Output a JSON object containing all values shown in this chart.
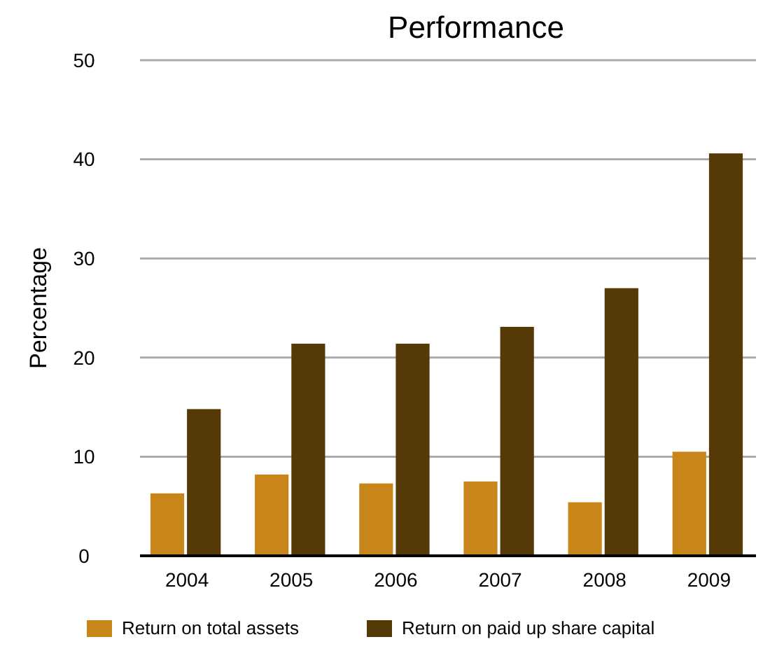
{
  "chart_data": {
    "type": "bar",
    "title": "Performance",
    "ylabel": "Percentage",
    "categories": [
      "2004",
      "2005",
      "2006",
      "2007",
      "2008",
      "2009"
    ],
    "series": [
      {
        "name": "Return on total assets",
        "color": "#c8861a",
        "values": [
          6.3,
          8.2,
          7.3,
          7.5,
          5.4,
          10.5
        ]
      },
      {
        "name": "Return on paid up share capital",
        "color": "#553a08",
        "values": [
          14.8,
          21.4,
          21.4,
          23.1,
          27.0,
          40.6
        ]
      }
    ],
    "ylim": [
      0,
      50
    ],
    "yticks": [
      0,
      10,
      20,
      30,
      40,
      50
    ],
    "grid": "y",
    "legend": "bottom"
  }
}
